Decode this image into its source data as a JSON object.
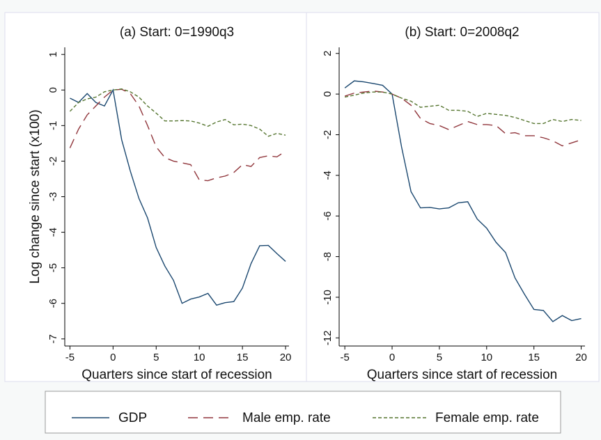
{
  "chart_data": [
    {
      "type": "line",
      "title": "(a) Start: 0=1990q3",
      "xlabel": "Quarters since start of recession",
      "ylabel": "Log change since start (x100)",
      "x": [
        -5,
        -4,
        -3,
        -2,
        -1,
        0,
        1,
        2,
        3,
        4,
        5,
        6,
        7,
        8,
        9,
        10,
        11,
        12,
        13,
        14,
        15,
        16,
        17,
        18,
        19,
        20
      ],
      "xlim": [
        -5.6,
        20.4
      ],
      "xticks": [
        -5,
        0,
        5,
        10,
        15,
        20
      ],
      "ylim": [
        -7.2,
        1.2
      ],
      "yticks": [
        1,
        0,
        -1,
        -2,
        -3,
        -4,
        -5,
        -6,
        -7
      ],
      "series": [
        {
          "name": "GDP",
          "color": "#1a476f",
          "values": [
            -0.23,
            -0.35,
            -0.1,
            -0.35,
            -0.45,
            0,
            -1.4,
            -2.28,
            -3.05,
            -3.6,
            -4.43,
            -4.95,
            -5.35,
            -6.0,
            -5.88,
            -5.82,
            -5.72,
            -6.05,
            -5.98,
            -5.95,
            -5.57,
            -4.88,
            -4.38,
            -4.37,
            -4.6,
            -4.82
          ]
        },
        {
          "name": "Male emp. rate",
          "color": "#90353b",
          "values": [
            -1.63,
            -1.1,
            -0.7,
            -0.45,
            -0.2,
            0,
            0.02,
            -0.1,
            -0.45,
            -1.0,
            -1.6,
            -1.9,
            -2.0,
            -2.05,
            -2.1,
            -2.53,
            -2.55,
            -2.47,
            -2.42,
            -2.32,
            -2.1,
            -2.15,
            -1.9,
            -1.85,
            -1.88,
            -1.72
          ]
        },
        {
          "name": "Female emp. rate",
          "color": "#55752f",
          "values": [
            -0.6,
            -0.35,
            -0.25,
            -0.2,
            -0.05,
            0,
            0.03,
            -0.05,
            -0.2,
            -0.45,
            -0.65,
            -0.87,
            -0.87,
            -0.86,
            -0.87,
            -0.93,
            -1.02,
            -0.9,
            -0.83,
            -0.98,
            -0.96,
            -1.0,
            -1.1,
            -1.3,
            -1.22,
            -1.27
          ]
        }
      ]
    },
    {
      "type": "line",
      "title": "(b) Start: 0=2008q2",
      "xlabel": "Quarters since start of recession",
      "x": [
        -5,
        -4,
        -3,
        -2,
        -1,
        0,
        1,
        2,
        3,
        4,
        5,
        6,
        7,
        8,
        9,
        10,
        11,
        12,
        13,
        14,
        15,
        16,
        17,
        18,
        19,
        20
      ],
      "xlim": [
        -5.6,
        20.4
      ],
      "xticks": [
        -5,
        0,
        5,
        10,
        15,
        20
      ],
      "ylim": [
        -12.4,
        2.3
      ],
      "yticks": [
        2,
        0,
        -2,
        -4,
        -6,
        -8,
        -10,
        -12
      ],
      "series": [
        {
          "color": "#1a476f",
          "values": [
            0.3,
            0.65,
            0.6,
            0.52,
            0.43,
            0,
            -2.6,
            -4.8,
            -5.6,
            -5.58,
            -5.65,
            -5.6,
            -5.35,
            -5.3,
            -6.15,
            -6.6,
            -7.3,
            -7.8,
            -9.05,
            -9.85,
            -10.6,
            -10.65,
            -11.2,
            -10.9,
            -11.15,
            -11.05
          ]
        },
        {
          "color": "#90353b",
          "values": [
            -0.1,
            0.05,
            0.1,
            0.15,
            0.1,
            0,
            -0.2,
            -0.55,
            -1.2,
            -1.45,
            -1.55,
            -1.75,
            -1.55,
            -1.35,
            -1.5,
            -1.5,
            -1.55,
            -1.95,
            -1.9,
            -2.05,
            -2.05,
            -2.15,
            -2.3,
            -2.55,
            -2.4,
            -2.25
          ]
        },
        {
          "color": "#55752f",
          "values": [
            -0.15,
            -0.05,
            0.05,
            0.1,
            0.1,
            0,
            -0.2,
            -0.35,
            -0.65,
            -0.6,
            -0.55,
            -0.8,
            -0.8,
            -0.85,
            -1.1,
            -0.95,
            -1.0,
            -1.05,
            -1.15,
            -1.3,
            -1.45,
            -1.45,
            -1.25,
            -1.35,
            -1.25,
            -1.3
          ]
        }
      ]
    }
  ]
}
